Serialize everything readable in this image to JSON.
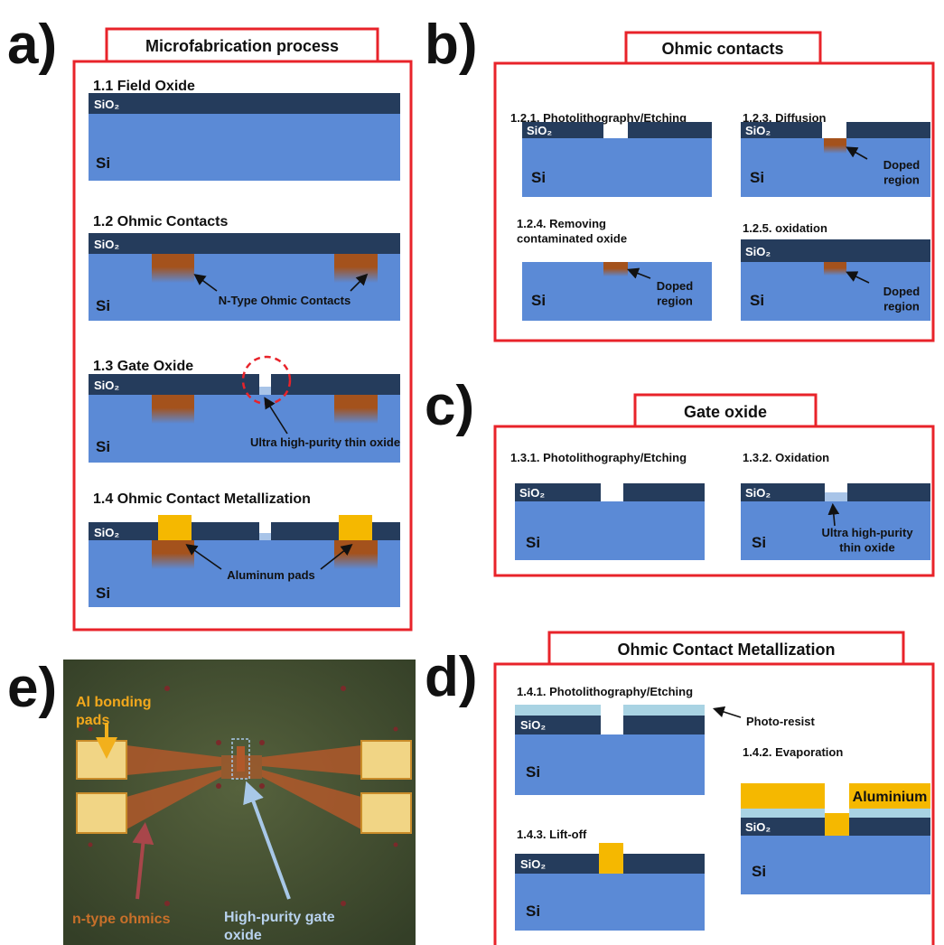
{
  "layers": {
    "oxide": "SiO₂",
    "substrate": "Si"
  },
  "panel_a": {
    "label": "a)",
    "title": "Microfabrication process",
    "steps": [
      {
        "title": "1.1 Field Oxide"
      },
      {
        "title": "1.2 Ohmic Contacts",
        "annotation": "N-Type Ohmic Contacts"
      },
      {
        "title": "1.3 Gate Oxide",
        "annotation": "Ultra high-purity thin oxide"
      },
      {
        "title": "1.4 Ohmic Contact Metallization",
        "annotation": "Aluminum pads"
      }
    ]
  },
  "panel_b": {
    "label": "b)",
    "title": "Ohmic contacts",
    "doped_label": "Doped region",
    "steps": [
      {
        "title": "1.2.1. Photolithography/Etching"
      },
      {
        "title": "1.2.3. Diffusion"
      },
      {
        "title": "1.2.4.  Removing contaminated oxide"
      },
      {
        "title": "1.2.5. oxidation"
      }
    ]
  },
  "panel_c": {
    "label": "c)",
    "title": "Gate oxide",
    "steps": [
      {
        "title": "1.3.1. Photolithography/Etching"
      },
      {
        "title": "1.3.2. Oxidation",
        "annotation": "Ultra high-purity thin oxide"
      }
    ]
  },
  "panel_d": {
    "label": "d)",
    "title": "Ohmic Contact Metallization",
    "steps": [
      {
        "title": "1.4.1. Photolithography/Etching",
        "annotation": "Photo-resist"
      },
      {
        "title": "1.4.2. Evaporation",
        "annotation": "Aluminium"
      },
      {
        "title": "1.4.3. Lift-off"
      }
    ]
  },
  "panel_e": {
    "label": "e)",
    "pads_label": "Al bonding pads",
    "ohmics_label": "n-type ohmics",
    "gate_label": "High-purity gate oxide"
  }
}
